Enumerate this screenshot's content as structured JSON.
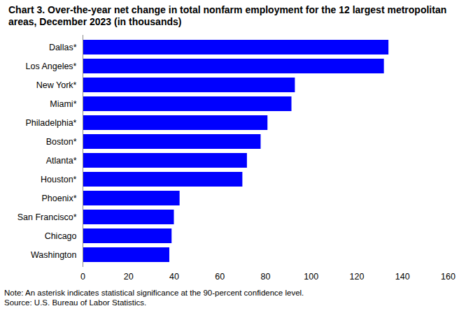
{
  "chart_data": {
    "type": "bar",
    "orientation": "horizontal",
    "title": "Chart 3. Over-the-year net change in total nonfarm employment for the 12  largest metropolitan areas, December 2023 (in thousands)",
    "categories": [
      "Dallas*",
      "Los Angeles*",
      "New York*",
      "Miami*",
      "Philadelphia*",
      "Boston*",
      "Atlanta*",
      "Houston*",
      "Phoenix*",
      "San Francisco*",
      "Chicago",
      "Washington"
    ],
    "values": [
      134,
      132,
      93,
      91.5,
      81,
      78,
      72,
      70,
      42.5,
      40,
      39,
      38
    ],
    "color": "#0000ff",
    "xlim": [
      0,
      160
    ],
    "xticks": [
      0,
      20,
      40,
      60,
      80,
      100,
      120,
      140,
      160
    ],
    "grid": false,
    "notes": [
      "Note: An asterisk indicates statistical significance at the 90-percent confidence level.",
      "Source: U.S. Bureau of Labor Statistics."
    ]
  }
}
